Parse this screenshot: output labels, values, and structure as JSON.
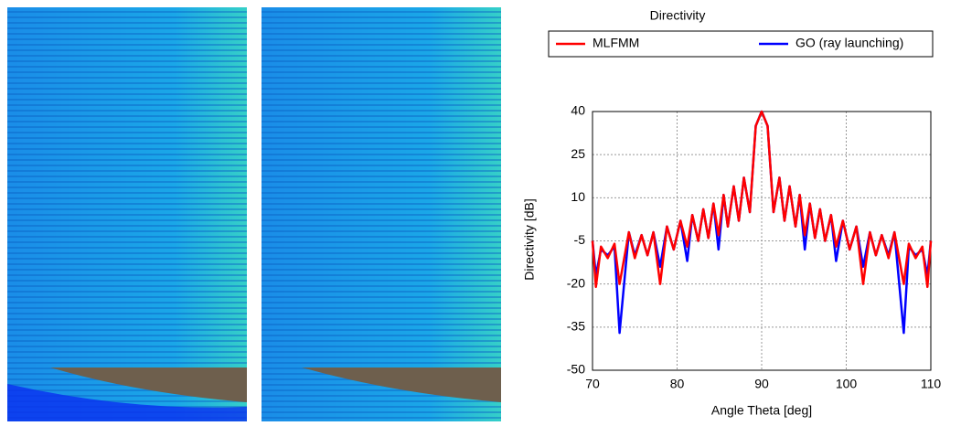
{
  "chart_data": {
    "type": "line",
    "title": "Directivity",
    "x_label": "Angle Theta [deg]",
    "y_label": "Directivity [dB]",
    "xlim": [
      70,
      110
    ],
    "xticks": [
      70,
      80,
      90,
      100,
      110
    ],
    "ylim": [
      -50,
      40
    ],
    "yticks": [
      -50,
      -35,
      -20,
      -5,
      10,
      25,
      40
    ],
    "grid": true,
    "legend": "top",
    "x": [
      70,
      70.4,
      71,
      71.8,
      72.6,
      73.2,
      74.3,
      75,
      75.8,
      76.5,
      77.2,
      78,
      78.8,
      79.6,
      80.4,
      81.2,
      81.8,
      82.5,
      83.1,
      83.7,
      84.3,
      84.9,
      85.5,
      86,
      86.7,
      87.3,
      87.9,
      88.6,
      89.3,
      90,
      90.7,
      91.4,
      92.1,
      92.7,
      93.3,
      94,
      94.5,
      95.1,
      95.7,
      96.3,
      96.9,
      97.5,
      98.2,
      98.8,
      99.6,
      100.4,
      101.2,
      102,
      102.8,
      103.5,
      104.2,
      105,
      105.7,
      106.8,
      107.4,
      108.2,
      109,
      109.6,
      110
    ],
    "series": [
      {
        "name": "MLFMM",
        "color": "#ff0000",
        "values": [
          -5,
          -21,
          -7,
          -11,
          -6,
          -20,
          -2,
          -11,
          -3,
          -10,
          -2,
          -20,
          0,
          -8,
          2,
          -7,
          4,
          -5,
          6,
          -4,
          8,
          -3,
          11,
          0,
          14,
          2,
          17,
          5,
          35,
          40,
          35,
          5,
          17,
          2,
          14,
          0,
          11,
          -3,
          8,
          -4,
          6,
          -5,
          4,
          -7,
          2,
          -8,
          0,
          -20,
          -2,
          -10,
          -3,
          -11,
          -2,
          -20,
          -6,
          -11,
          -7,
          -21,
          -5
        ]
      },
      {
        "name": "GO (ray launching)",
        "color": "#0000ff",
        "values": [
          -5,
          -17,
          -8,
          -10,
          -7,
          -37,
          -2,
          -10,
          -3,
          -10,
          -2,
          -14,
          0,
          -8,
          2,
          -12,
          4,
          -5,
          6,
          -4,
          8,
          -8,
          11,
          0,
          14,
          2,
          17,
          5,
          35,
          40,
          35,
          5,
          17,
          2,
          14,
          0,
          11,
          -8,
          8,
          -4,
          6,
          -5,
          4,
          -12,
          2,
          -8,
          0,
          -14,
          -2,
          -10,
          -3,
          -10,
          -2,
          -37,
          -7,
          -10,
          -8,
          -17,
          -5
        ]
      }
    ]
  }
}
